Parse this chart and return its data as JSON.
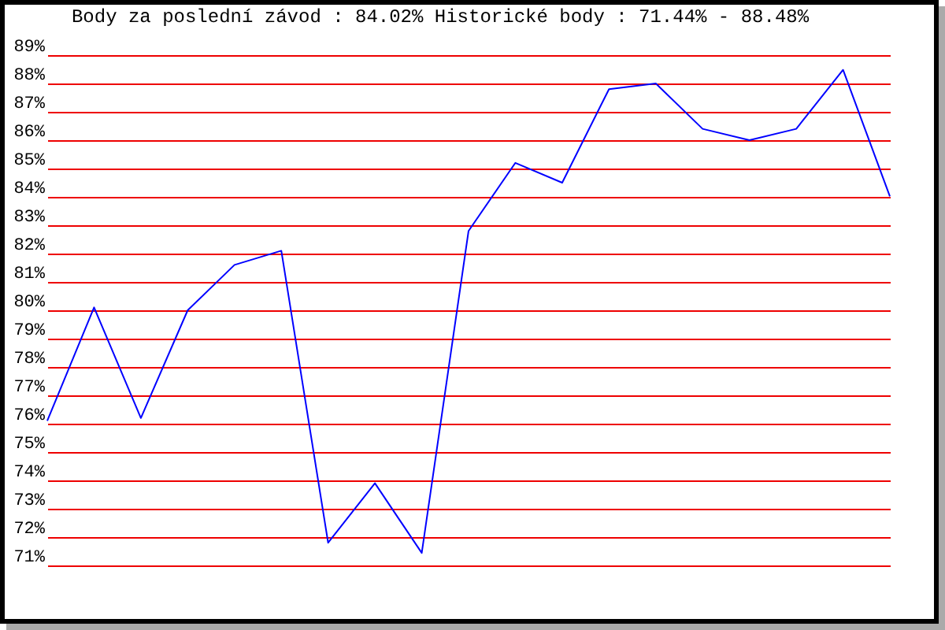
{
  "chart_data": {
    "type": "line",
    "title": "Body za poslední závod : 84.02%  Historické body : 71.44% - 88.48%",
    "categories": [
      null,
      null,
      null,
      null,
      null,
      null,
      null,
      null,
      null,
      null,
      null,
      null,
      null,
      null,
      null,
      null,
      null,
      null,
      null
    ],
    "series": [
      {
        "color": "#0000ff",
        "values": [
          76.1,
          80.1,
          76.2,
          80.0,
          81.6,
          82.1,
          71.8,
          73.9,
          71.44,
          82.8,
          85.2,
          84.5,
          87.8,
          88.0,
          86.4,
          86.0,
          86.4,
          88.48,
          84.02
        ]
      }
    ],
    "ylim": [
      71,
      89
    ],
    "yticks": [
      {
        "value": 71,
        "label": "71%"
      },
      {
        "value": 72,
        "label": "72%"
      },
      {
        "value": 73,
        "label": "73%"
      },
      {
        "value": 74,
        "label": "74%"
      },
      {
        "value": 75,
        "label": "75%"
      },
      {
        "value": 76,
        "label": "76%"
      },
      {
        "value": 77,
        "label": "77%"
      },
      {
        "value": 78,
        "label": "78%"
      },
      {
        "value": 79,
        "label": "79%"
      },
      {
        "value": 80,
        "label": "80%"
      },
      {
        "value": 81,
        "label": "81%"
      },
      {
        "value": 82,
        "label": "82%"
      },
      {
        "value": 83,
        "label": "83%"
      },
      {
        "value": 84,
        "label": "84%"
      },
      {
        "value": 85,
        "label": "85%"
      },
      {
        "value": 86,
        "label": "86%"
      },
      {
        "value": 87,
        "label": "87%"
      },
      {
        "value": 88,
        "label": "88%"
      },
      {
        "value": 89,
        "label": "89%"
      }
    ],
    "grid": "y",
    "tick_labels": "y",
    "marker": "none",
    "line_style": "solid"
  }
}
